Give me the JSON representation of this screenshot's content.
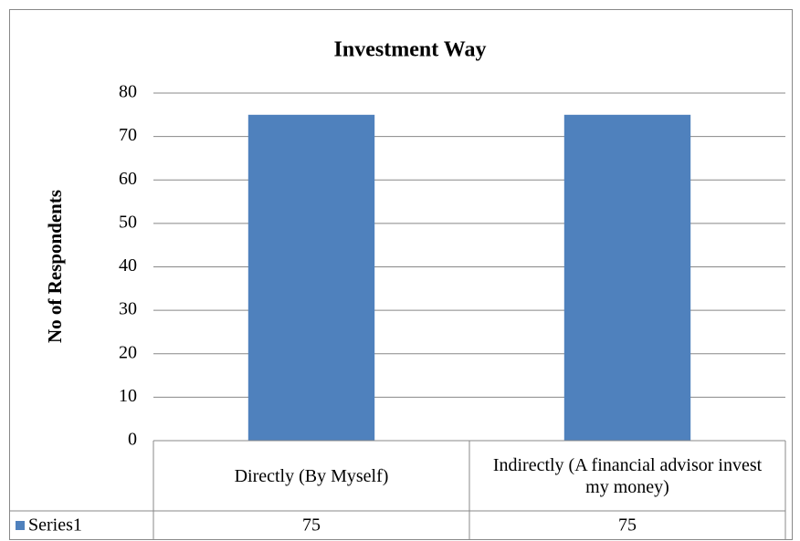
{
  "chart_data": {
    "type": "bar",
    "title": "Investment Way",
    "y_label": "No of Respondents",
    "categories": [
      "Directly (By Myself)",
      "Indirectly (A financial advisor invest my money)"
    ],
    "series": [
      {
        "name": "Series1",
        "color": "#4f81bd",
        "values": [
          75,
          75
        ]
      }
    ],
    "ylim": [
      0,
      80
    ],
    "yticks": [
      0,
      10,
      20,
      30,
      40,
      50,
      60,
      70,
      80
    ],
    "grid": true,
    "data_table": true
  }
}
